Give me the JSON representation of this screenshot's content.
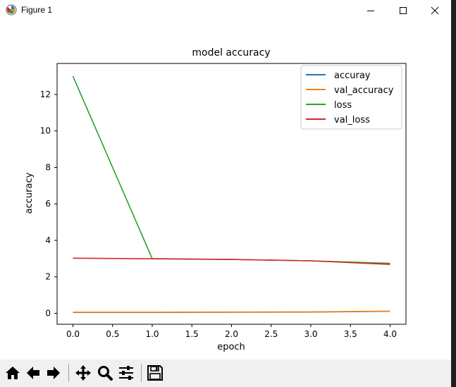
{
  "window": {
    "title": "Figure 1",
    "minimize_icon": "minimize-icon",
    "maximize_icon": "maximize-icon",
    "close_icon": "close-icon"
  },
  "toolbar": {
    "buttons": [
      {
        "name": "home-button",
        "icon": "home-icon"
      },
      {
        "name": "back-button",
        "icon": "arrow-left-icon"
      },
      {
        "name": "forward-button",
        "icon": "arrow-right-icon"
      },
      {
        "name": "pan-button",
        "icon": "move-icon"
      },
      {
        "name": "zoom-button",
        "icon": "magnifier-icon"
      },
      {
        "name": "configure-subplots-button",
        "icon": "sliders-icon"
      },
      {
        "name": "save-button",
        "icon": "save-icon"
      }
    ]
  },
  "chart_data": {
    "type": "line",
    "title": "model accuracy",
    "xlabel": "epoch",
    "ylabel": "accuracy",
    "x": [
      0,
      1,
      2,
      3,
      4
    ],
    "xlim": [
      -0.2,
      4.2
    ],
    "ylim": [
      -0.6,
      13.7
    ],
    "xticks": [
      0.0,
      0.5,
      1.0,
      1.5,
      2.0,
      2.5,
      3.0,
      3.5,
      4.0
    ],
    "xtick_labels": [
      "0.0",
      "0.5",
      "1.0",
      "1.5",
      "2.0",
      "2.5",
      "3.0",
      "3.5",
      "4.0"
    ],
    "yticks": [
      0,
      2,
      4,
      6,
      8,
      10,
      12
    ],
    "ytick_labels": [
      "0",
      "2",
      "4",
      "6",
      "8",
      "10",
      "12"
    ],
    "grid": false,
    "legend_position": "top-right",
    "series": [
      {
        "name": "accuray",
        "color": "#1f77b4",
        "values": [
          0.05,
          0.05,
          0.06,
          0.07,
          0.11
        ]
      },
      {
        "name": "val_accuracy",
        "color": "#ff7f0e",
        "values": [
          0.06,
          0.06,
          0.07,
          0.08,
          0.12
        ]
      },
      {
        "name": "loss",
        "color": "#2ca02c",
        "values": [
          13.0,
          3.0,
          2.95,
          2.88,
          2.74
        ]
      },
      {
        "name": "val_loss",
        "color": "#d62728",
        "values": [
          3.02,
          2.99,
          2.95,
          2.88,
          2.68
        ]
      }
    ]
  }
}
